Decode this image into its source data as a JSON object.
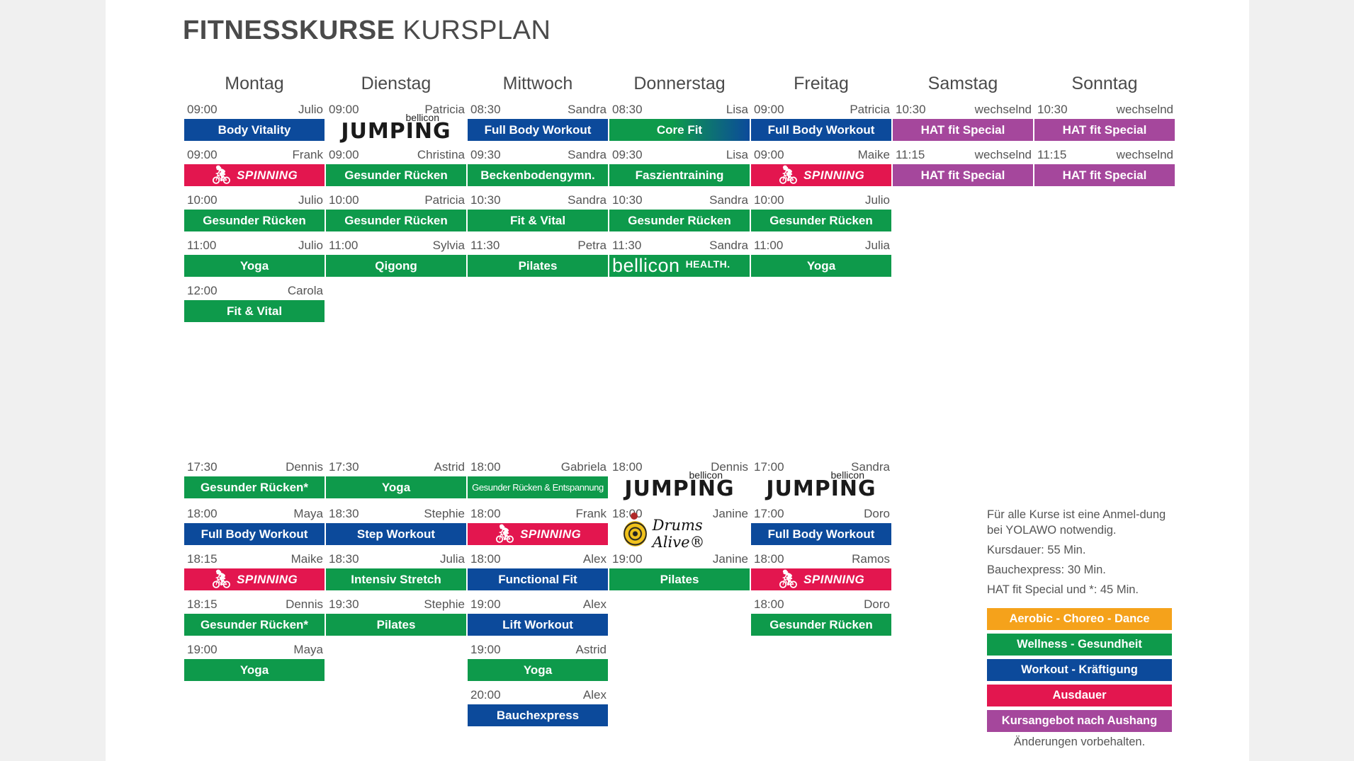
{
  "title": {
    "bold": "FITNESSKURSE",
    "light": "KURSPLAN"
  },
  "days": [
    "Montag",
    "Dienstag",
    "Mittwoch",
    "Donnerstag",
    "Freitag",
    "Samstag",
    "Sonntag"
  ],
  "colors": {
    "green": "#0e9a4b",
    "blue": "#0c4a9b",
    "red": "#e3164f",
    "purple": "#a5479c",
    "orange": "#f5a21b"
  },
  "morning": {
    "Montag": [
      {
        "time": "09:00",
        "trainer": "Julio",
        "course": "Body Vitality",
        "color": "blue"
      },
      {
        "time": "09:00",
        "trainer": "Frank",
        "course": "SPINNING",
        "color": "red",
        "logo": "spinning"
      },
      {
        "time": "10:00",
        "trainer": "Julio",
        "course": "Gesunder Rücken",
        "color": "green"
      },
      {
        "time": "11:00",
        "trainer": "Julio",
        "course": "Yoga",
        "color": "green"
      },
      {
        "time": "12:00",
        "trainer": "Carola",
        "course": "Fit & Vital",
        "color": "green"
      }
    ],
    "Dienstag": [
      {
        "time": "09:00",
        "trainer": "Patricia",
        "course": "bellicon Jumping",
        "color": "none",
        "logo": "jumping",
        "logo_small": "bellicon",
        "logo_big": "JUMPING"
      },
      {
        "time": "09:00",
        "trainer": "Christina",
        "course": "Gesunder Rücken",
        "color": "green"
      },
      {
        "time": "10:00",
        "trainer": "Patricia",
        "course": "Gesunder Rücken",
        "color": "green"
      },
      {
        "time": "11:00",
        "trainer": "Sylvia",
        "course": "Qigong",
        "color": "green"
      }
    ],
    "Mittwoch": [
      {
        "time": "08:30",
        "trainer": "Sandra",
        "course": "Full Body Workout",
        "color": "blue"
      },
      {
        "time": "09:30",
        "trainer": "Sandra",
        "course": "Beckenbodengymn.",
        "color": "green"
      },
      {
        "time": "10:30",
        "trainer": "Sandra",
        "course": "Fit & Vital",
        "color": "green"
      },
      {
        "time": "11:30",
        "trainer": "Petra",
        "course": "Pilates",
        "color": "green"
      }
    ],
    "Donnerstag": [
      {
        "time": "08:30",
        "trainer": "Lisa",
        "course": "Core Fit",
        "color": "gradient"
      },
      {
        "time": "09:30",
        "trainer": "Lisa",
        "course": "Faszientraining",
        "color": "green"
      },
      {
        "time": "10:30",
        "trainer": "Sandra",
        "course": "Gesunder Rücken",
        "color": "green"
      },
      {
        "time": "11:30",
        "trainer": "Sandra",
        "course": "bellicon HEALTH.",
        "color": "green",
        "logo": "bellicon-health",
        "logo_a": "bellicon",
        "logo_b": "HEALTH."
      }
    ],
    "Freitag": [
      {
        "time": "09:00",
        "trainer": "Patricia",
        "course": "Full Body Workout",
        "color": "blue"
      },
      {
        "time": "09:00",
        "trainer": "Maike",
        "course": "SPINNING",
        "color": "red",
        "logo": "spinning"
      },
      {
        "time": "10:00",
        "trainer": "Julio",
        "course": "Gesunder Rücken",
        "color": "green"
      },
      {
        "time": "11:00",
        "trainer": "Julia",
        "course": "Yoga",
        "color": "green"
      }
    ],
    "Samstag": [
      {
        "time": "10:30",
        "trainer": "wechselnd",
        "course": "HAT fit Special",
        "color": "purple"
      },
      {
        "time": "11:15",
        "trainer": "wechselnd",
        "course": "HAT fit Special",
        "color": "purple"
      }
    ],
    "Sonntag": [
      {
        "time": "10:30",
        "trainer": "wechselnd",
        "course": "HAT fit Special",
        "color": "purple"
      },
      {
        "time": "11:15",
        "trainer": "wechselnd",
        "course": "HAT fit Special",
        "color": "purple"
      }
    ]
  },
  "evening": {
    "Montag": [
      {
        "time": "17:30",
        "trainer": "Dennis",
        "course": "Gesunder Rücken*",
        "color": "green"
      },
      {
        "time": "18:00",
        "trainer": "Maya",
        "course": "Full Body Workout",
        "color": "blue"
      },
      {
        "time": "18:15",
        "trainer": "Maike",
        "course": "SPINNING",
        "color": "red",
        "logo": "spinning"
      },
      {
        "time": "18:15",
        "trainer": "Dennis",
        "course": "Gesunder Rücken*",
        "color": "green"
      },
      {
        "time": "19:00",
        "trainer": "Maya",
        "course": "Yoga",
        "color": "green"
      }
    ],
    "Dienstag": [
      {
        "time": "17:30",
        "trainer": "Astrid",
        "course": "Yoga",
        "color": "green"
      },
      {
        "time": "18:30",
        "trainer": "Stephie",
        "course": "Step Workout",
        "color": "blue"
      },
      {
        "time": "18:30",
        "trainer": "Julia",
        "course": "Intensiv Stretch",
        "color": "green"
      },
      {
        "time": "19:30",
        "trainer": "Stephie",
        "course": "Pilates",
        "color": "green"
      }
    ],
    "Mittwoch": [
      {
        "time": "18:00",
        "trainer": "Gabriela",
        "course": "Gesunder Rücken & Entspannung",
        "color": "green",
        "small": true
      },
      {
        "time": "18:00",
        "trainer": "Frank",
        "course": "SPINNING",
        "color": "red",
        "logo": "spinning"
      },
      {
        "time": "18:00",
        "trainer": "Alex",
        "course": "Functional Fit",
        "color": "blue"
      },
      {
        "time": "19:00",
        "trainer": "Alex",
        "course": "Lift Workout",
        "color": "blue"
      },
      {
        "time": "19:00",
        "trainer": "Astrid",
        "course": "Yoga",
        "color": "green"
      },
      {
        "time": "20:00",
        "trainer": "Alex",
        "course": "Bauchexpress",
        "color": "blue"
      }
    ],
    "Donnerstag": [
      {
        "time": "18:00",
        "trainer": "Dennis",
        "course": "bellicon Jumping",
        "color": "none",
        "logo": "jumping",
        "logo_small": "bellicon",
        "logo_big": "JUMPING"
      },
      {
        "time": "18:00",
        "trainer": "Janine",
        "course": "Drums Alive",
        "color": "none",
        "logo": "drums",
        "logo_text": "Drums Alive®"
      },
      {
        "time": "19:00",
        "trainer": "Janine",
        "course": "Pilates",
        "color": "green"
      }
    ],
    "Freitag": [
      {
        "time": "17:00",
        "trainer": "Sandra",
        "course": "bellicon Jumping",
        "color": "none",
        "logo": "jumping",
        "logo_small": "bellicon",
        "logo_big": "JUMPING"
      },
      {
        "time": "17:00",
        "trainer": "Doro",
        "course": "Full Body Workout",
        "color": "blue"
      },
      {
        "time": "18:00",
        "trainer": "Ramos",
        "course": "SPINNING",
        "color": "red",
        "logo": "spinning"
      },
      {
        "time": "18:00",
        "trainer": "Doro",
        "course": "Gesunder Rücken",
        "color": "green"
      }
    ]
  },
  "notes": [
    "Für alle Kurse ist eine Anmel-dung bei YOLAWO notwendig.",
    "Kursdauer: 55 Min.",
    "Bauchexpress: 30 Min.",
    "HAT fit Special und *: 45 Min."
  ],
  "legend": [
    {
      "label": "Aerobic - Choreo - Dance",
      "color": "orange"
    },
    {
      "label": "Wellness - Gesundheit",
      "color": "green"
    },
    {
      "label": "Workout - Kräftigung",
      "color": "blue"
    },
    {
      "label": "Ausdauer",
      "color": "red"
    },
    {
      "label": "Kursangebot nach Aushang",
      "color": "purple"
    }
  ],
  "footnote": "Änderungen vorbehalten."
}
